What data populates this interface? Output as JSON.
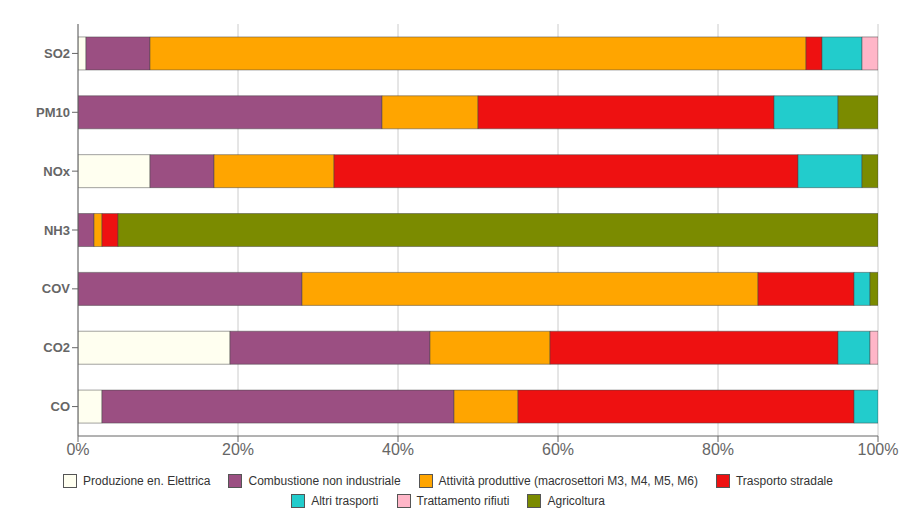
{
  "chart_data": {
    "type": "bar",
    "orientation": "horizontal",
    "stacked": true,
    "categories": [
      "SO2",
      "PM10",
      "NOx",
      "NH3",
      "COV",
      "CO2",
      "CO"
    ],
    "series": [
      {
        "name": "Produzione en. Elettrica",
        "color": "#FFFFF0",
        "values": [
          1,
          0,
          9,
          0,
          0,
          19,
          3
        ]
      },
      {
        "name": "Combustione non industriale",
        "color": "#9B4F82",
        "values": [
          8,
          38,
          8,
          2,
          28,
          25,
          44
        ]
      },
      {
        "name": "Attività produttive (macrosettori M3, M4, M5, M6)",
        "color": "#FFA500",
        "values": [
          82,
          12,
          15,
          1,
          57,
          15,
          8
        ]
      },
      {
        "name": "Trasporto stradale",
        "color": "#EE1111",
        "values": [
          2,
          37,
          58,
          2,
          12,
          36,
          42
        ]
      },
      {
        "name": "Altri trasporti",
        "color": "#22CCCC",
        "values": [
          5,
          8,
          8,
          0,
          2,
          4,
          3
        ]
      },
      {
        "name": "Trattamento rifiuti",
        "color": "#FFB6C8",
        "values": [
          2,
          0,
          0,
          0,
          0,
          1,
          0
        ]
      },
      {
        "name": "Agricoltura",
        "color": "#7B8B00",
        "values": [
          0,
          5,
          2,
          95,
          1,
          0,
          0
        ]
      }
    ],
    "xlim": [
      0,
      100
    ],
    "xticks": [
      {
        "value": 0,
        "label": "0%"
      },
      {
        "value": 20,
        "label": "20%"
      },
      {
        "value": 40,
        "label": "40%"
      },
      {
        "value": 60,
        "label": "60%"
      },
      {
        "value": 80,
        "label": "80%"
      },
      {
        "value": 100,
        "label": "100%"
      }
    ],
    "grid": true,
    "legend": "bottom"
  }
}
